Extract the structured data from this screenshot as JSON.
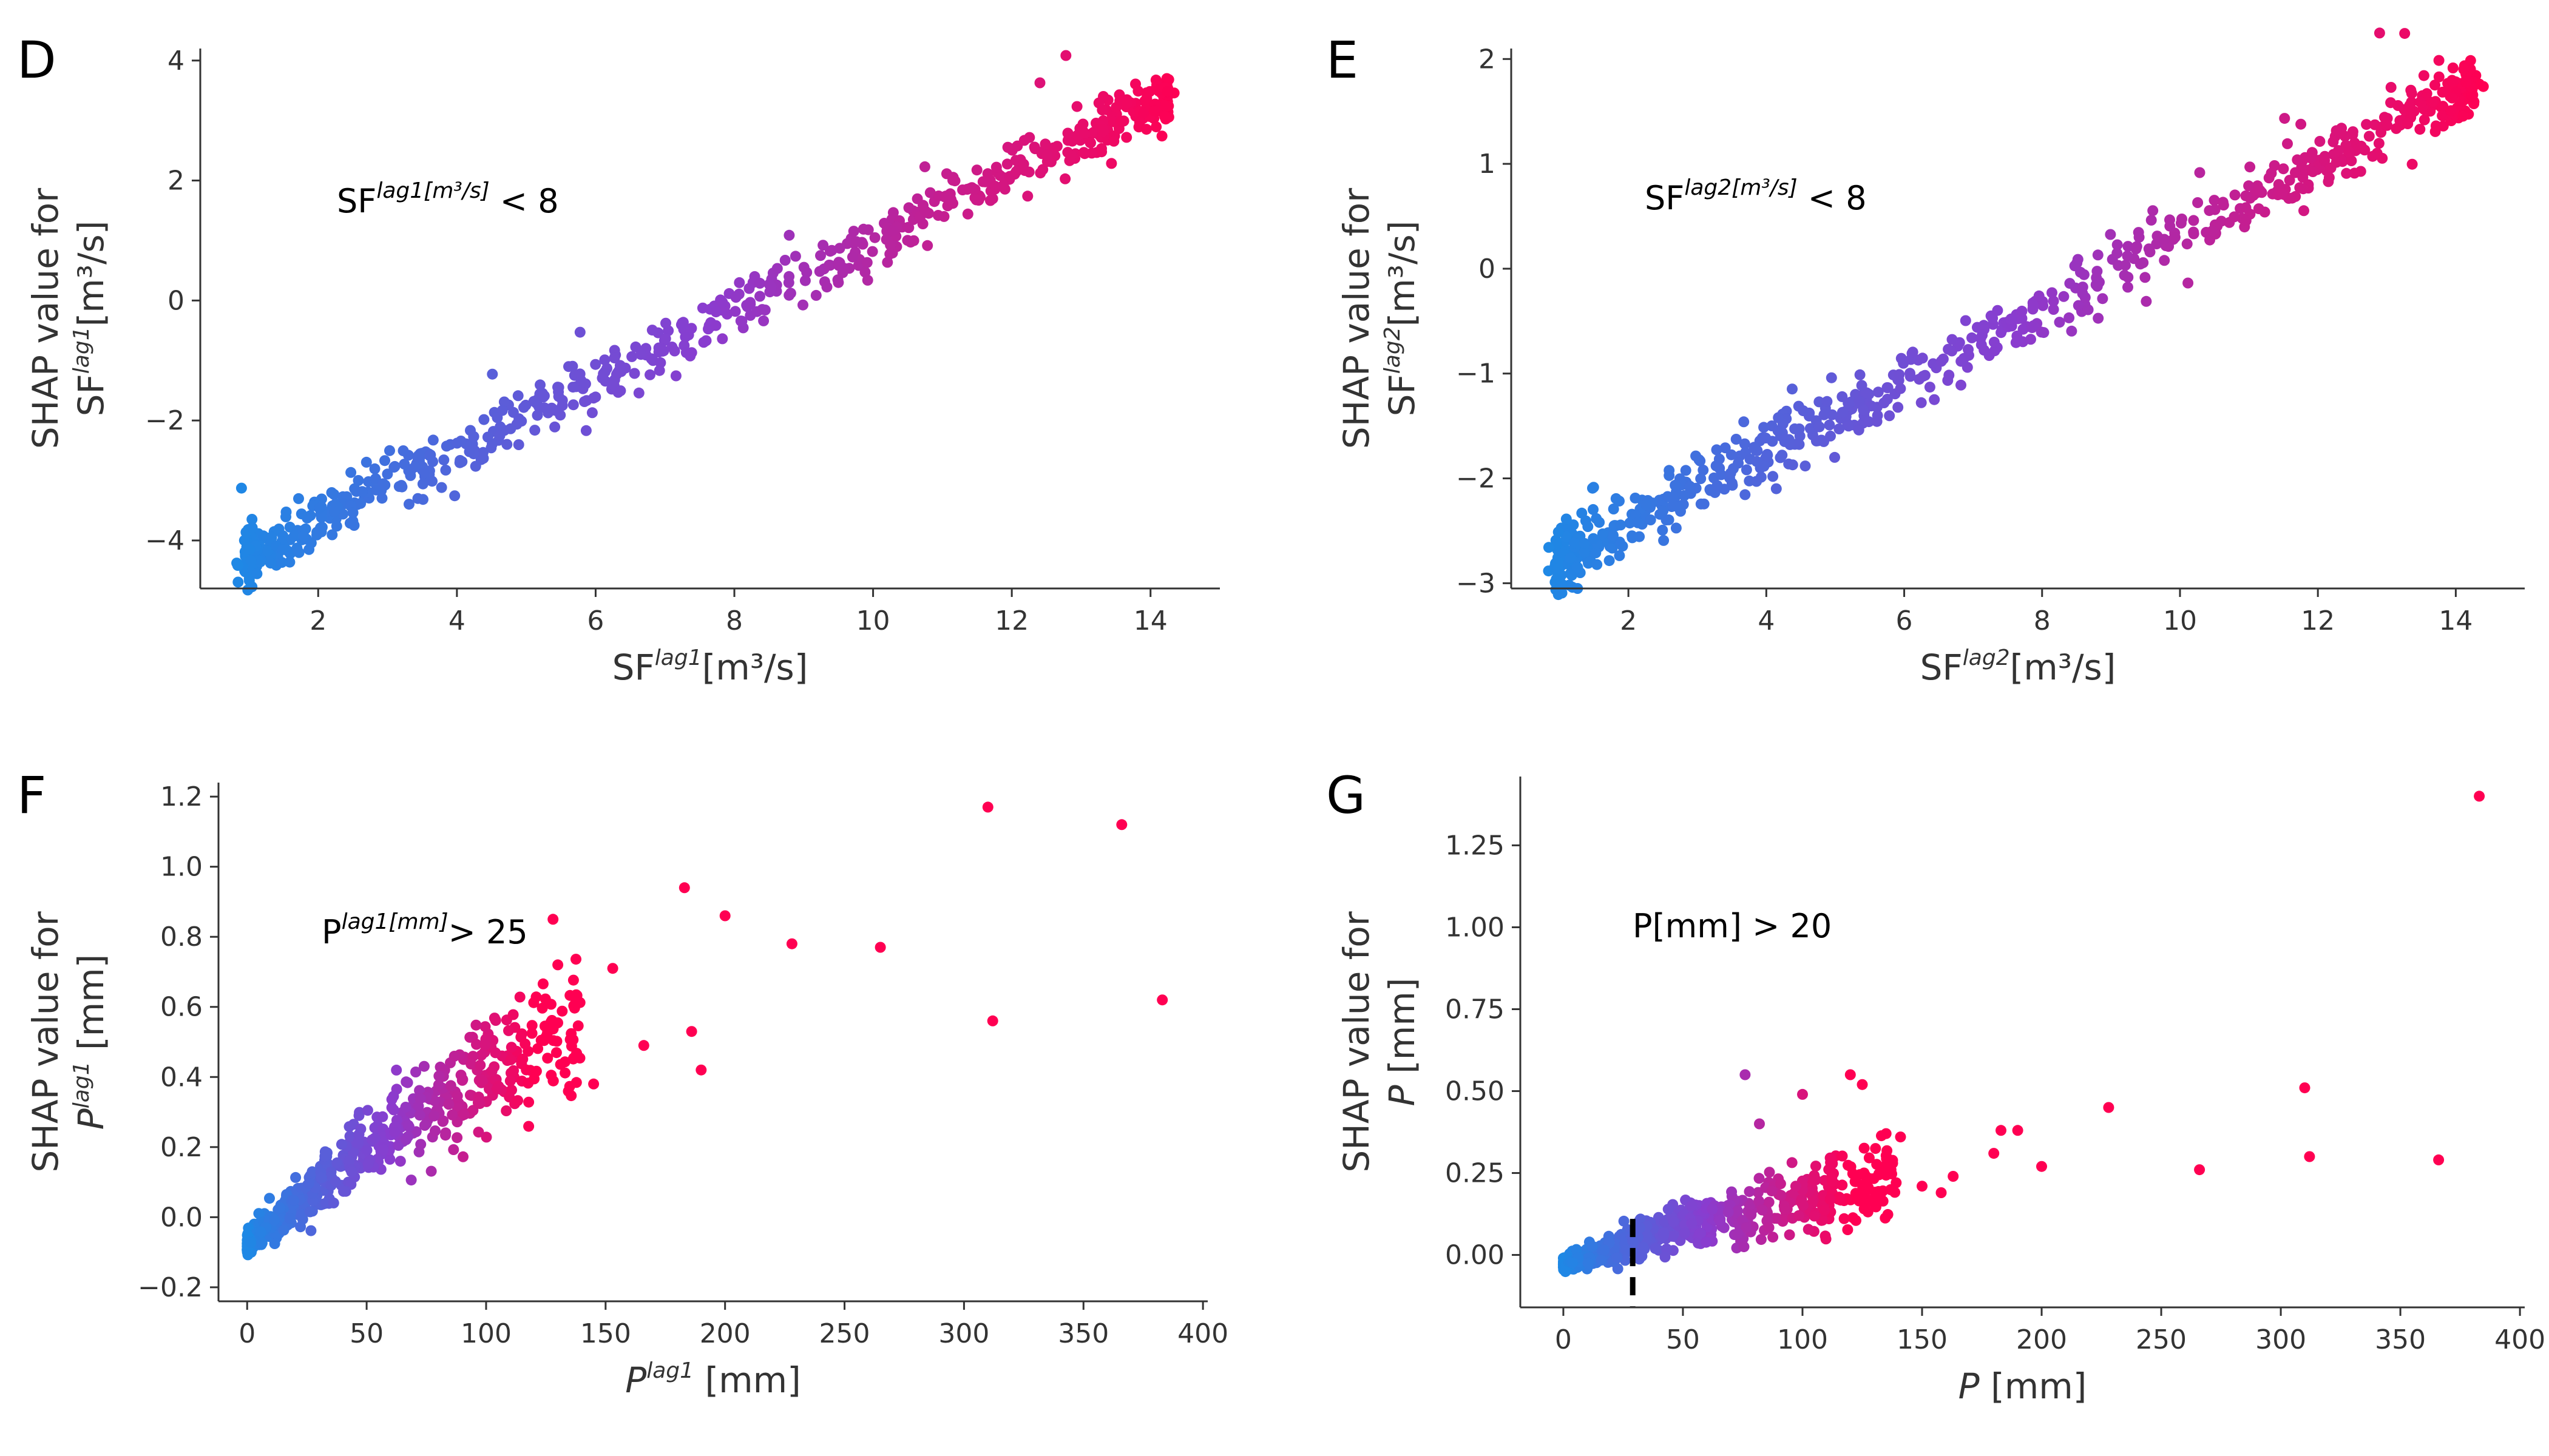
{
  "chart_data": [
    {
      "type": "scatter",
      "panel": "D",
      "annotation": {
        "base": "SF",
        "sup": "lag1[m³/s]",
        "rest": " < 8"
      },
      "xlabel": {
        "base": "SF",
        "sup": "lag1",
        "rest": "[m³/s]"
      },
      "ylabel_line1": "SHAP value for",
      "ylabel_line2": {
        "base": "SF",
        "sup": "lag1",
        "rest": "[m³/s]"
      },
      "xlim": [
        0.3,
        15.0
      ],
      "ylim": [
        -4.8,
        4.2
      ],
      "xticks": [
        2,
        4,
        6,
        8,
        10,
        12,
        14
      ],
      "yticks": [
        -4,
        -2,
        0,
        2,
        4
      ],
      "xticklabels": [
        "2",
        "4",
        "6",
        "8",
        "10",
        "12",
        "14"
      ],
      "yticklabels": [
        "−4",
        "−2",
        "0",
        "2",
        "4"
      ],
      "trend": {
        "x": [
          0.8,
          14.4
        ],
        "y": [
          -4.35,
          3.5
        ]
      },
      "x_range": [
        0.8,
        14.4
      ],
      "noise": 0.22,
      "point_count": 700
    },
    {
      "type": "scatter",
      "panel": "E",
      "annotation": {
        "base": "SF",
        "sup": "lag2[m³/s]",
        "rest": " < 8"
      },
      "xlabel": {
        "base": "SF",
        "sup": "lag2",
        "rest": "[m³/s]"
      },
      "ylabel_line1": "SHAP value for",
      "ylabel_line2": {
        "base": "SF",
        "sup": "lag2",
        "rest": "[m³/s]"
      },
      "xlim": [
        0.3,
        15.0
      ],
      "ylim": [
        -3.05,
        2.1
      ],
      "xticks": [
        2,
        4,
        6,
        8,
        10,
        12,
        14
      ],
      "yticks": [
        -3,
        -2,
        -1,
        0,
        1,
        2
      ],
      "xticklabels": [
        "2",
        "4",
        "6",
        "8",
        "10",
        "12",
        "14"
      ],
      "yticklabels": [
        "−3",
        "−2",
        "−1",
        "0",
        "1",
        "2"
      ],
      "trend": {
        "x": [
          0.8,
          14.4
        ],
        "y": [
          -2.85,
          1.8
        ]
      },
      "x_range": [
        0.8,
        14.4
      ],
      "noise": 0.15,
      "point_count": 700
    },
    {
      "type": "scatter",
      "panel": "F",
      "annotation": {
        "base": "P",
        "sup": "lag1[mm]",
        "rest": "> 25"
      },
      "xlabel": {
        "base": "P",
        "sup": "lag1",
        "rest": " [mm]",
        "italic_base": true
      },
      "ylabel_line1": "SHAP value for",
      "ylabel_line2": {
        "base": "P",
        "sup": "lag1",
        "rest": " [mm]",
        "italic_base": true
      },
      "xlim": [
        -12,
        402
      ],
      "ylim": [
        -0.24,
        1.24
      ],
      "xticks": [
        0,
        50,
        100,
        150,
        200,
        250,
        300,
        350,
        400
      ],
      "yticks": [
        -0.2,
        0.0,
        0.2,
        0.4,
        0.6,
        0.8,
        1.0,
        1.2
      ],
      "xticklabels": [
        "0",
        "50",
        "100",
        "150",
        "200",
        "250",
        "300",
        "350",
        "400"
      ],
      "yticklabels": [
        "−0.2",
        "0.0",
        "0.2",
        "0.4",
        "0.6",
        "0.8",
        "1.0",
        "1.2"
      ],
      "outliers": [
        [
          310,
          1.17
        ],
        [
          366,
          1.12
        ],
        [
          383,
          0.62
        ],
        [
          312,
          0.56
        ],
        [
          265,
          0.77
        ],
        [
          228,
          0.78
        ],
        [
          200,
          0.86
        ],
        [
          183,
          0.94
        ],
        [
          186,
          0.53
        ],
        [
          190,
          0.42
        ],
        [
          166,
          0.49
        ],
        [
          153,
          0.71
        ],
        [
          145,
          0.38
        ],
        [
          128,
          0.85
        ],
        [
          130,
          0.72
        ]
      ],
      "cluster": {
        "x_max": 140,
        "point_count": 600
      },
      "color_scale_max": 120
    },
    {
      "type": "scatter",
      "panel": "G",
      "annotation": {
        "base": "P[",
        "sup": "",
        "rest": "mm] > 20"
      },
      "xlabel": {
        "base": "P",
        "sup": "",
        "rest": " [mm]",
        "italic_base": true
      },
      "ylabel_line1": "SHAP value for",
      "ylabel_line2": {
        "base": "P",
        "sup": "",
        "rest": " [mm]",
        "italic_base": true
      },
      "xlim": [
        -18,
        402
      ],
      "ylim": [
        -0.16,
        1.46
      ],
      "xticks": [
        0,
        50,
        100,
        150,
        200,
        250,
        300,
        350,
        400
      ],
      "yticks": [
        0.0,
        0.25,
        0.5,
        0.75,
        1.0,
        1.25
      ],
      "xticklabels": [
        "0",
        "50",
        "100",
        "150",
        "200",
        "250",
        "300",
        "350",
        "400"
      ],
      "yticklabels": [
        "0.00",
        "0.25",
        "0.50",
        "0.75",
        "1.00",
        "1.25"
      ],
      "threshold_x": 29,
      "outliers": [
        [
          383,
          1.4
        ],
        [
          310,
          0.51
        ],
        [
          312,
          0.3
        ],
        [
          366,
          0.29
        ],
        [
          266,
          0.26
        ],
        [
          228,
          0.45
        ],
        [
          200,
          0.27
        ],
        [
          190,
          0.38
        ],
        [
          183,
          0.38
        ],
        [
          180,
          0.31
        ],
        [
          163,
          0.24
        ],
        [
          158,
          0.19
        ],
        [
          150,
          0.21
        ],
        [
          141,
          0.36
        ],
        [
          137,
          0.26
        ],
        [
          125,
          0.52
        ],
        [
          120,
          0.55
        ],
        [
          100,
          0.49
        ],
        [
          76,
          0.55
        ],
        [
          82,
          0.4
        ]
      ],
      "cluster": {
        "x_max": 140,
        "point_count": 600
      },
      "color_scale_max": 120
    }
  ],
  "colors": {
    "low": "#1e88e5",
    "mid": "#8a3ccf",
    "high": "#ff0052"
  }
}
